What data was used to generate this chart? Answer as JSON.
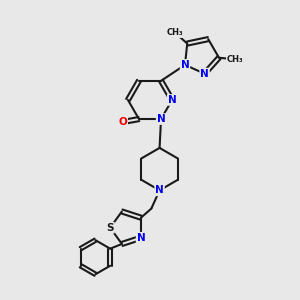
{
  "bg_color": "#e8e8e8",
  "bond_color": "#1a1a1a",
  "N_color": "#0000ee",
  "O_color": "#ee0000",
  "S_color": "#1a1a1a",
  "linewidth": 1.5,
  "figsize": [
    3.0,
    3.0
  ],
  "dpi": 100,
  "xlim": [
    0,
    10
  ],
  "ylim": [
    0,
    10
  ]
}
